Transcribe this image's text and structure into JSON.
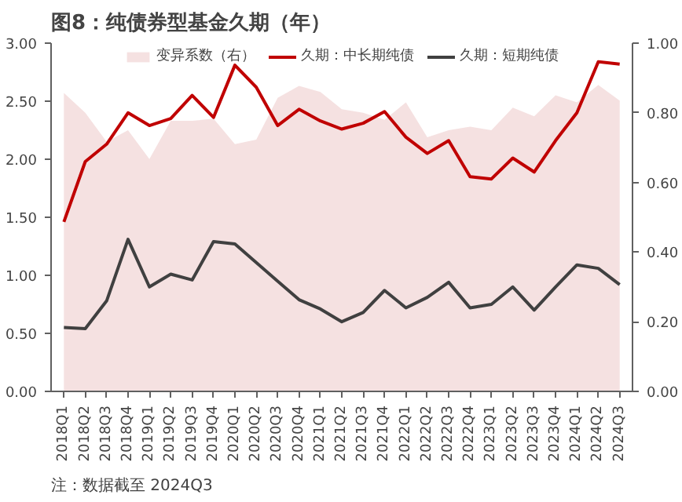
{
  "chart_data": {
    "type": "line",
    "title": "图8：纯债券型基金久期（年）",
    "categories": [
      "2018Q1",
      "2018Q2",
      "2018Q3",
      "2018Q4",
      "2019Q1",
      "2019Q2",
      "2019Q3",
      "2019Q4",
      "2020Q1",
      "2020Q2",
      "2020Q3",
      "2020Q4",
      "2021Q1",
      "2021Q2",
      "2021Q3",
      "2021Q4",
      "2022Q1",
      "2022Q2",
      "2022Q3",
      "2022Q4",
      "2023Q1",
      "2023Q2",
      "2023Q3",
      "2023Q4",
      "2024Q1",
      "2024Q2",
      "2024Q3"
    ],
    "series": [
      {
        "name": "变异系数（右）",
        "type": "area",
        "axis": "y2",
        "color": "#f5e1e1",
        "values": [
          0.857,
          0.8,
          0.717,
          0.75,
          0.667,
          0.777,
          0.777,
          0.783,
          0.71,
          0.723,
          0.843,
          0.877,
          0.86,
          0.81,
          0.8,
          0.78,
          0.83,
          0.73,
          0.75,
          0.76,
          0.75,
          0.815,
          0.79,
          0.85,
          0.83,
          0.88,
          0.835
        ]
      },
      {
        "name": "久期：中长期纯债",
        "color": "#c00000",
        "values": [
          1.46,
          1.98,
          2.13,
          2.4,
          2.29,
          2.35,
          2.55,
          2.36,
          2.81,
          2.62,
          2.29,
          2.43,
          2.33,
          2.26,
          2.31,
          2.41,
          2.19,
          2.05,
          2.16,
          1.85,
          1.83,
          2.01,
          1.89,
          2.16,
          2.4,
          2.84,
          2.82
        ]
      },
      {
        "name": "久期：短期纯债",
        "color": "#404040",
        "values": [
          0.55,
          0.54,
          0.78,
          1.31,
          0.9,
          1.01,
          0.96,
          1.29,
          1.27,
          1.11,
          0.95,
          0.79,
          0.71,
          0.6,
          0.68,
          0.87,
          0.72,
          0.81,
          0.94,
          0.72,
          0.75,
          0.9,
          0.7,
          0.9,
          1.09,
          1.06,
          0.92
        ]
      }
    ],
    "ylim": [
      0,
      3
    ],
    "yticks": [
      {
        "value": 0,
        "label": "0.00"
      },
      {
        "value": 0.5,
        "label": "0.50"
      },
      {
        "value": 1,
        "label": "1.00"
      },
      {
        "value": 1.5,
        "label": "1.50"
      },
      {
        "value": 2,
        "label": "2.00"
      },
      {
        "value": 2.5,
        "label": "2.50"
      },
      {
        "value": 3,
        "label": "3.00"
      }
    ],
    "y2lim": [
      0,
      1
    ],
    "y2ticks": [
      {
        "value": 0,
        "label": "0.00"
      },
      {
        "value": 0.2,
        "label": "0.20"
      },
      {
        "value": 0.4,
        "label": "0.40"
      },
      {
        "value": 0.6,
        "label": "0.60"
      },
      {
        "value": 0.8,
        "label": "0.80"
      },
      {
        "value": 1,
        "label": "1.00"
      }
    ],
    "legend": "top",
    "annotations": [
      "注：数据截至 2024Q3"
    ]
  }
}
